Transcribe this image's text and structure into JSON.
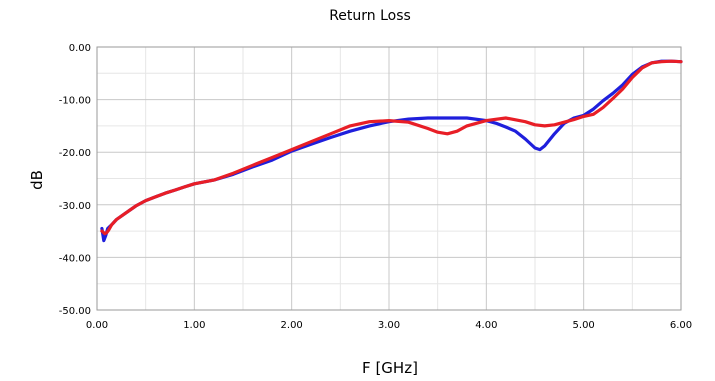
{
  "chart_data": {
    "type": "line",
    "title": "Return Loss",
    "xlabel": "F [GHz]",
    "ylabel": "dB",
    "xlim": [
      0,
      6
    ],
    "ylim": [
      -50,
      0
    ],
    "xticks": [
      0,
      1,
      2,
      3,
      4,
      5,
      6
    ],
    "yticks": [
      0,
      -10,
      -20,
      -30,
      -40,
      -50
    ],
    "xtick_labels": [
      "0.00",
      "1.00",
      "2.00",
      "3.00",
      "4.00",
      "5.00",
      "6.00"
    ],
    "ytick_labels": [
      "0.00",
      "-10.00",
      "-20.00",
      "-30.00",
      "-40.00",
      "-50.00"
    ],
    "grid": true,
    "legend": "none",
    "series": [
      {
        "color": "#1f1fdc",
        "x": [
          0.05,
          0.07,
          0.09,
          0.11,
          0.15,
          0.2,
          0.3,
          0.4,
          0.5,
          0.6,
          0.7,
          0.8,
          0.9,
          1.0,
          1.2,
          1.4,
          1.6,
          1.8,
          2.0,
          2.2,
          2.4,
          2.6,
          2.8,
          3.0,
          3.2,
          3.4,
          3.6,
          3.8,
          4.0,
          4.1,
          4.2,
          4.3,
          4.4,
          4.5,
          4.55,
          4.6,
          4.7,
          4.8,
          4.9,
          5.0,
          5.1,
          5.2,
          5.3,
          5.4,
          5.5,
          5.6,
          5.7,
          5.8,
          5.9,
          6.0
        ],
        "y": [
          -34.5,
          -36.8,
          -35.8,
          -34.5,
          -33.8,
          -32.8,
          -31.5,
          -30.2,
          -29.2,
          -28.5,
          -27.8,
          -27.2,
          -26.6,
          -26.0,
          -25.3,
          -24.2,
          -22.8,
          -21.5,
          -19.8,
          -18.5,
          -17.2,
          -16.0,
          -15.0,
          -14.2,
          -13.7,
          -13.5,
          -13.5,
          -13.5,
          -14.0,
          -14.5,
          -15.2,
          -16.0,
          -17.5,
          -19.2,
          -19.5,
          -18.8,
          -16.5,
          -14.5,
          -13.5,
          -13.0,
          -11.8,
          -10.2,
          -8.8,
          -7.2,
          -5.2,
          -3.8,
          -3.0,
          -2.7,
          -2.7,
          -2.8
        ]
      },
      {
        "color": "#e81e26",
        "x": [
          0.05,
          0.08,
          0.1,
          0.12,
          0.15,
          0.2,
          0.3,
          0.4,
          0.5,
          0.6,
          0.7,
          0.8,
          0.9,
          1.0,
          1.2,
          1.4,
          1.6,
          1.8,
          2.0,
          2.2,
          2.4,
          2.6,
          2.8,
          3.0,
          3.2,
          3.4,
          3.5,
          3.6,
          3.7,
          3.8,
          4.0,
          4.2,
          4.4,
          4.5,
          4.6,
          4.7,
          4.8,
          4.9,
          5.0,
          5.1,
          5.2,
          5.3,
          5.4,
          5.5,
          5.6,
          5.7,
          5.8,
          5.9,
          6.0
        ],
        "y": [
          -35.0,
          -35.5,
          -35.3,
          -34.8,
          -33.8,
          -32.8,
          -31.5,
          -30.2,
          -29.2,
          -28.5,
          -27.8,
          -27.2,
          -26.6,
          -26.0,
          -25.3,
          -24.0,
          -22.5,
          -21.0,
          -19.5,
          -18.0,
          -16.5,
          -15.0,
          -14.2,
          -14.0,
          -14.3,
          -15.5,
          -16.2,
          -16.5,
          -16.0,
          -15.0,
          -14.0,
          -13.5,
          -14.2,
          -14.8,
          -15.0,
          -14.8,
          -14.3,
          -13.8,
          -13.2,
          -12.8,
          -11.5,
          -9.8,
          -8.0,
          -5.8,
          -4.0,
          -3.0,
          -2.8,
          -2.7,
          -2.8
        ]
      }
    ]
  }
}
